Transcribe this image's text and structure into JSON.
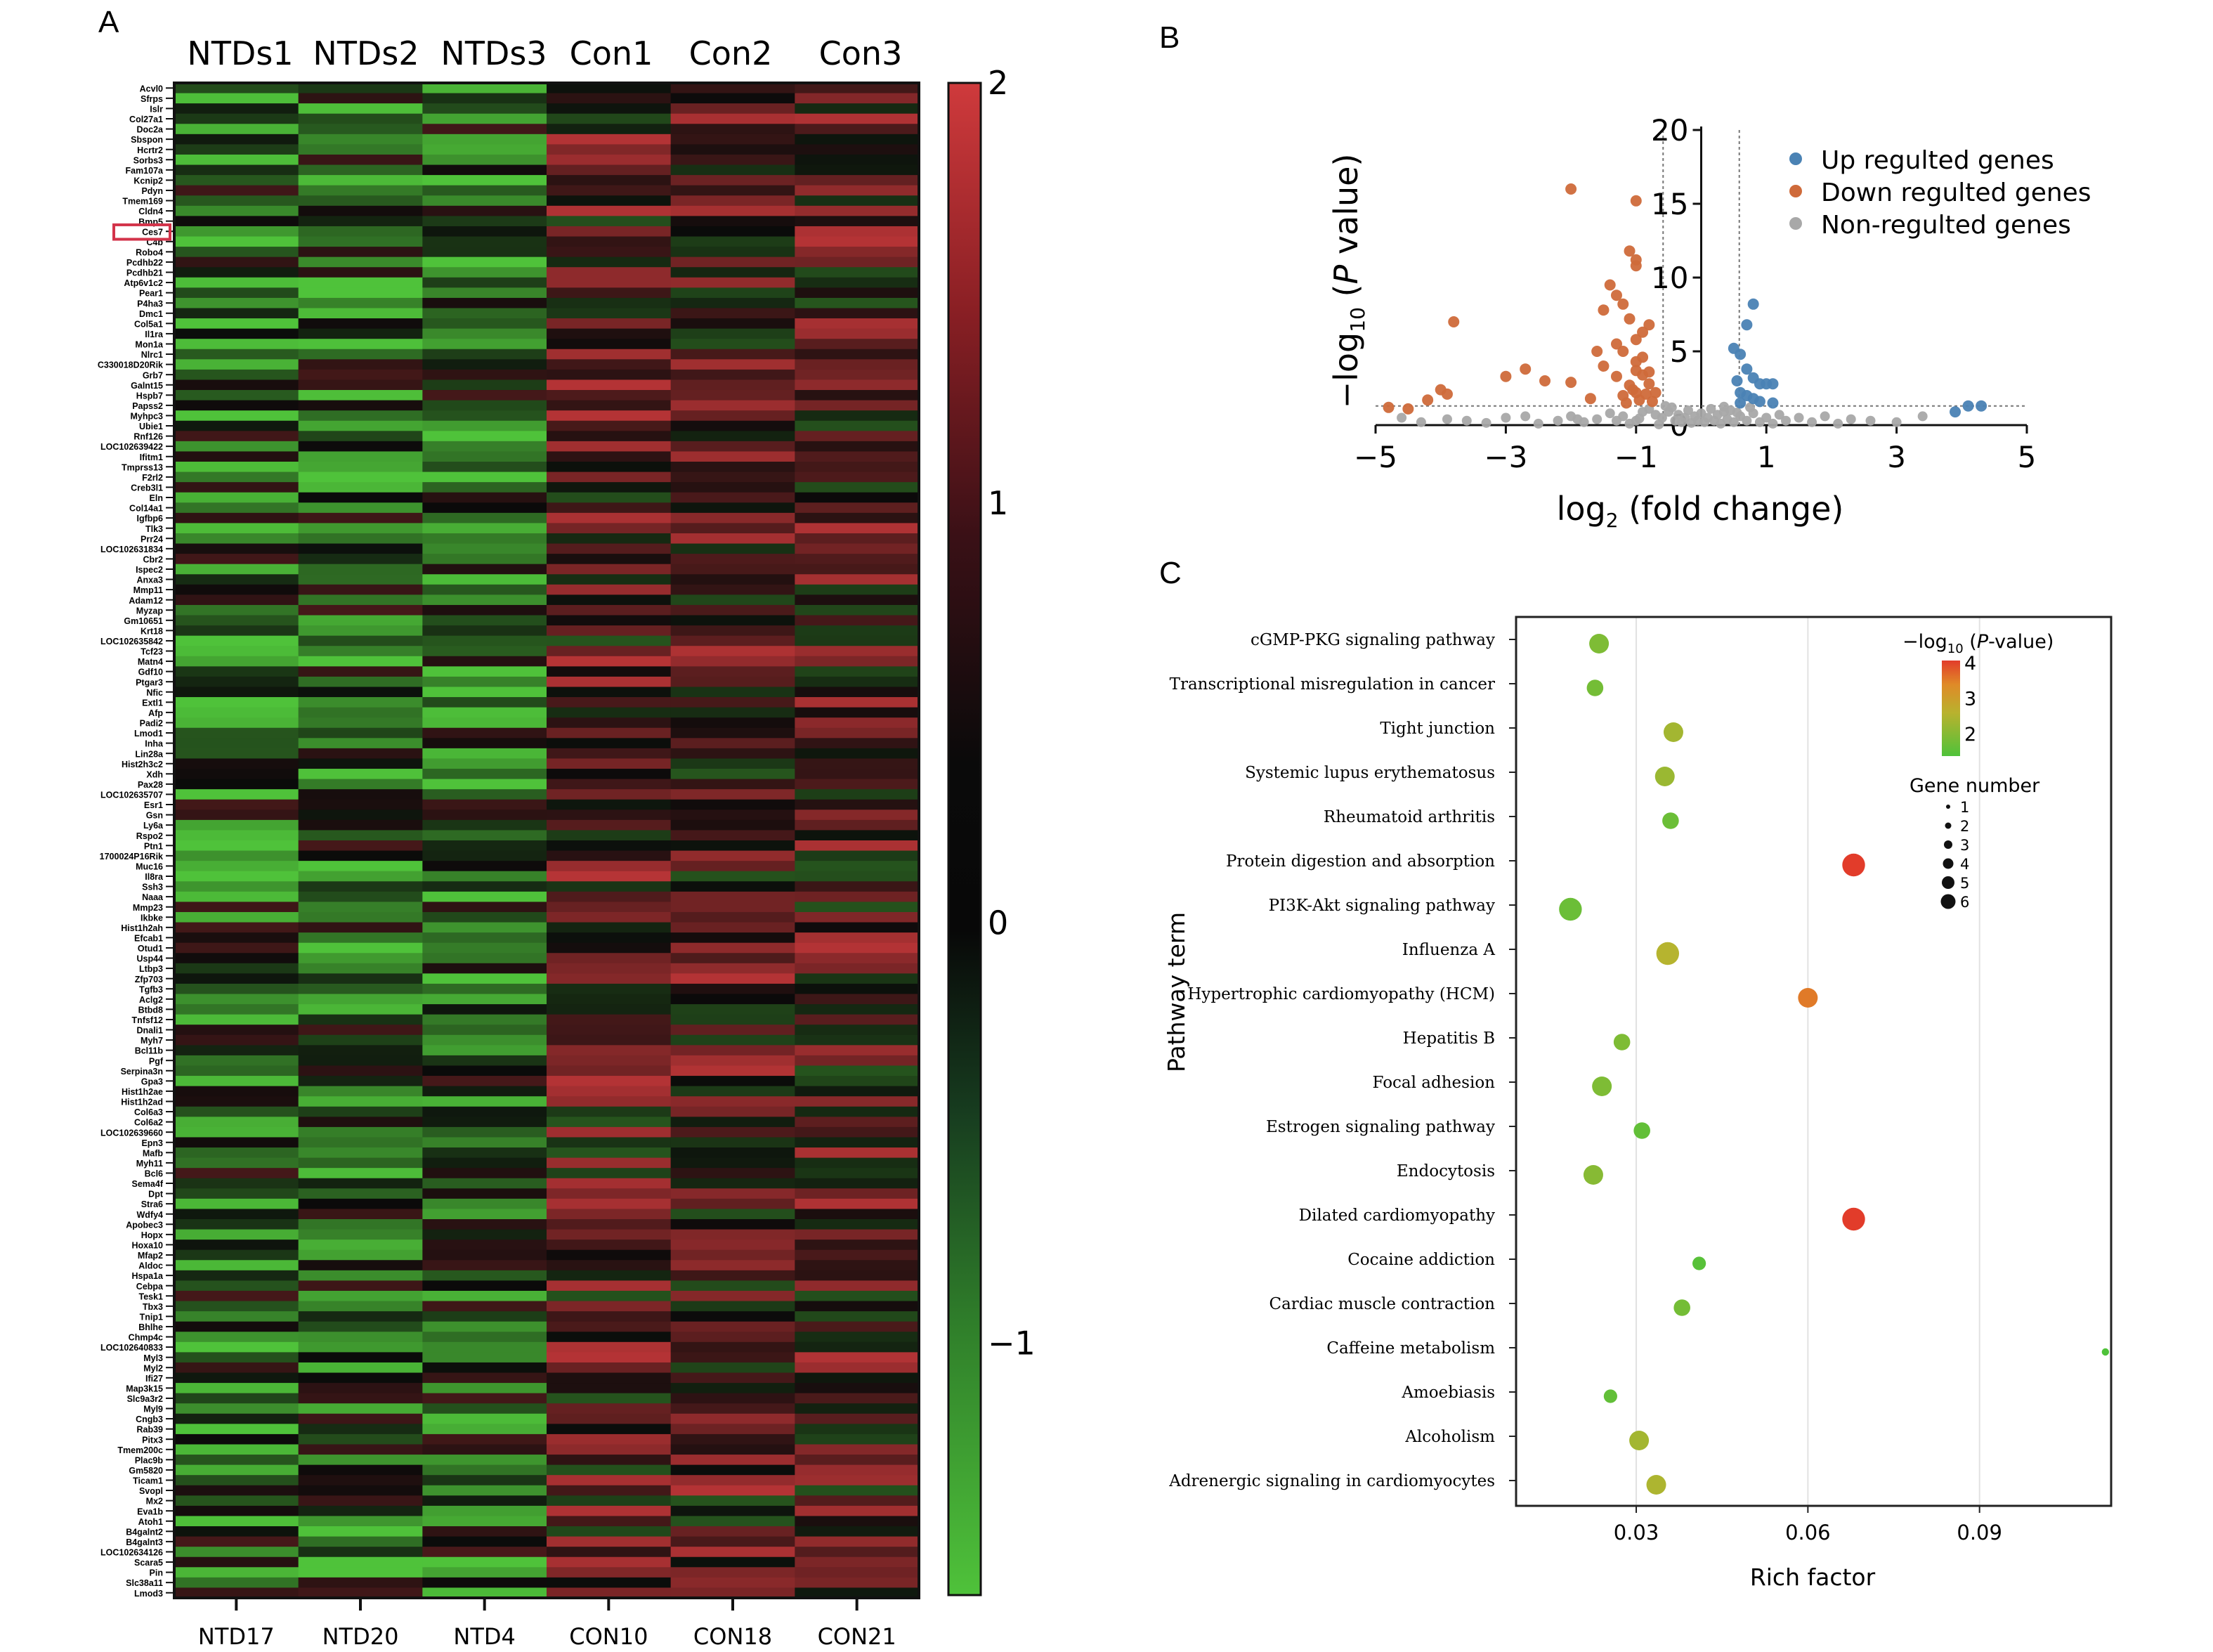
{
  "panels": {
    "a": "A",
    "b": "B",
    "c": "C"
  },
  "chart_data": [
    {
      "type": "heatmap",
      "group_labels": [
        "NTDs1",
        "NTDs2",
        "NTDs3",
        "Con1",
        "Con2",
        "Con3"
      ],
      "samples": [
        "NTD17",
        "NTD20",
        "NTD4",
        "CON10",
        "CON18",
        "CON21"
      ],
      "colorbar": {
        "ticks": [
          2,
          1,
          0,
          -1
        ],
        "labels": [
          "2",
          "1",
          "0",
          "−1"
        ],
        "range": [
          -1.6,
          2.0
        ],
        "colors": {
          "low": "#4fc23a",
          "mid": "#0a0a0a",
          "high": "#cf3a3c"
        }
      },
      "highlighted_gene": "Ces7",
      "genes": [
        "Acvl0",
        "Sfrps",
        "Islr",
        "Col27a1",
        "Doc2a",
        "Sbspon",
        "Hcrtr2",
        "Sorbs3",
        "Fam107a",
        "Kcnip2",
        "Pdyn",
        "Tmem169",
        "Cldn4",
        "Bmp5",
        "Ces7",
        "C4b",
        "Robo4",
        "Pcdhb22",
        "Pcdhb21",
        "Atp6v1c2",
        "Pear1",
        "P4ha3",
        "Dmc1",
        "Col5a1",
        "Il1ra",
        "Mon1a",
        "Nlrc1",
        "C330018D20Rik",
        "Grb7",
        "Galnt15",
        "Hspb7",
        "Papss2",
        "Myhpc3",
        "Ubie1",
        "Rnf126",
        "LOC102639422",
        "Ifitm1",
        "Tmprss13",
        "F2rl2",
        "Creb3l1",
        "Eln",
        "Col14a1",
        "Igfbp6",
        "Tlk3",
        "Prr24",
        "LOC102631834",
        "Cbr2",
        "Ispec2",
        "Anxa3",
        "Mmp11",
        "Adam12",
        "Myzap",
        "Gm10651",
        "Krt18",
        "LOC102635842",
        "Tcf23",
        "Matn4",
        "Gdf10",
        "Ptgar3",
        "Nfic",
        "Extl1",
        "Afp",
        "Padi2",
        "Lmod1",
        "Inha",
        "Lin28a",
        "Hist2h3c2",
        "Xdh",
        "Pax28",
        "LOC102635707",
        "Esr1",
        "Gsn",
        "Ly6a",
        "Rspo2",
        "Ptn1",
        "1700024P16Rik",
        "Muc16",
        "Il8ra",
        "Ssh3",
        "Naaa",
        "Mmp23",
        "Ikbke",
        "Hist1h2ah",
        "Efcab1",
        "Otud1",
        "Usp44",
        "Ltbp3",
        "Zfp703",
        "Tgfb3",
        "Aclg2",
        "Btbd8",
        "Tnfsf12",
        "Dnali1",
        "Myh7",
        "Bcl11b",
        "Pgf",
        "Serpina3n",
        "Gpa3",
        "Hist1h2ae",
        "Hist1h2ad",
        "Col6a3",
        "Col6a2",
        "LOC102639660",
        "Epn3",
        "Mafb",
        "Myh11",
        "Bcl6",
        "Sema4f",
        "Dpt",
        "Stra6",
        "Wdfy4",
        "Apobec3",
        "Hopx",
        "Hoxa10",
        "Mfap2",
        "Aldoc",
        "Hspa1a",
        "Cebpa",
        "Tesk1",
        "Tbx3",
        "Tnip1",
        "Bhlhe",
        "Chmp4c",
        "LOC102640833",
        "Myl3",
        "Myl2",
        "Ifi27",
        "Map3k15",
        "Slc9a3r2",
        "Myl9",
        "Cngb3",
        "Rab39",
        "Pitx3",
        "Tmem200c",
        "Plac9b",
        "Gm5820",
        "Ticam1",
        "Svopl",
        "Mx2",
        "Eva1b",
        "Atoh1",
        "B4galnt2",
        "B4galnt3",
        "LOC102634126",
        "Scara5",
        "Pin",
        "Slc38a11",
        "Lmod3"
      ]
    },
    {
      "type": "scatter",
      "subtype": "volcano",
      "xlabel": "log2 (fold change)",
      "ylabel": "−log10 (P value)",
      "xlim": [
        -5,
        5
      ],
      "ylim": [
        0,
        20
      ],
      "xticks": [
        -5,
        -3,
        -1,
        1,
        3,
        5
      ],
      "xtick_labels": [
        "−5",
        "−3",
        "−1",
        "1",
        "3",
        "5"
      ],
      "yticks": [
        0,
        5,
        10,
        15,
        20
      ],
      "thresholds": {
        "fold_change_x": [
          -0.585,
          0.585
        ],
        "p_y": 1.3
      },
      "legend": {
        "position": "top-right",
        "entries": [
          {
            "label": "Up regulted genes",
            "color": "#4a82b4"
          },
          {
            "label": "Down regulted genes",
            "color": "#cf6a3a"
          },
          {
            "label": "Non-regulted genes",
            "color": "#a8a8a8"
          }
        ]
      },
      "series": [
        {
          "name": "Up regulted genes",
          "points": [
            [
              0.8,
              8.2
            ],
            [
              0.7,
              6.8
            ],
            [
              0.5,
              5.2
            ],
            [
              0.6,
              4.8
            ],
            [
              0.7,
              3.8
            ],
            [
              0.8,
              3.2
            ],
            [
              0.9,
              2.8
            ],
            [
              1.0,
              2.8
            ],
            [
              1.1,
              2.8
            ],
            [
              0.6,
              2.2
            ],
            [
              0.8,
              1.8
            ],
            [
              0.9,
              1.6
            ],
            [
              4.1,
              1.3
            ],
            [
              4.3,
              1.3
            ],
            [
              3.9,
              0.9
            ],
            [
              1.1,
              1.5
            ],
            [
              0.6,
              1.5
            ],
            [
              0.7,
              2.0
            ],
            [
              0.55,
              3.0
            ]
          ]
        },
        {
          "name": "Down regulted genes",
          "points": [
            [
              -2.0,
              16
            ],
            [
              -1.0,
              15.2
            ],
            [
              -1.1,
              11.8
            ],
            [
              -1.0,
              11.2
            ],
            [
              -1.0,
              10.8
            ],
            [
              -1.4,
              9.5
            ],
            [
              -1.3,
              8.8
            ],
            [
              -1.2,
              8.2
            ],
            [
              -1.5,
              7.8
            ],
            [
              -1.1,
              7.2
            ],
            [
              -0.8,
              6.8
            ],
            [
              -0.9,
              6.3
            ],
            [
              -1.0,
              5.8
            ],
            [
              -1.3,
              5.5
            ],
            [
              -1.6,
              5.0
            ],
            [
              -1.2,
              5.0
            ],
            [
              -0.9,
              4.6
            ],
            [
              -1.0,
              4.3
            ],
            [
              -1.5,
              4.0
            ],
            [
              -3.8,
              7.0
            ],
            [
              -2.7,
              3.8
            ],
            [
              -3.0,
              3.3
            ],
            [
              -2.4,
              3.0
            ],
            [
              -2.0,
              2.9
            ],
            [
              -4.0,
              2.4
            ],
            [
              -3.9,
              2.1
            ],
            [
              -4.2,
              1.7
            ],
            [
              -4.5,
              1.1
            ],
            [
              -4.8,
              1.2
            ],
            [
              -1.7,
              1.8
            ],
            [
              -1.0,
              2.2
            ],
            [
              -1.1,
              2.7
            ],
            [
              -1.3,
              3.3
            ],
            [
              -0.9,
              3.4
            ],
            [
              -0.8,
              2.8
            ],
            [
              -0.7,
              2.2
            ],
            [
              -0.75,
              1.6
            ],
            [
              -1.15,
              1.5
            ],
            [
              -0.8,
              3.6
            ],
            [
              -1.0,
              3.7
            ],
            [
              -1.05,
              2.4
            ],
            [
              -1.2,
              2.0
            ],
            [
              -0.85,
              2.1
            ],
            [
              -0.95,
              1.7
            ]
          ]
        },
        {
          "name": "Non-regulted genes",
          "points": [
            [
              -4.6,
              0.5
            ],
            [
              -4.3,
              0.2
            ],
            [
              -3.9,
              0.4
            ],
            [
              -3.6,
              0.3
            ],
            [
              -3.3,
              0.15
            ],
            [
              -3.0,
              0.5
            ],
            [
              -2.7,
              0.6
            ],
            [
              -2.5,
              0.1
            ],
            [
              -2.2,
              0.3
            ],
            [
              -2.0,
              0.6
            ],
            [
              -1.8,
              0.2
            ],
            [
              -1.6,
              0.4
            ],
            [
              -1.4,
              0.8
            ],
            [
              -1.2,
              0.6
            ],
            [
              -1.0,
              0.3
            ],
            [
              -0.9,
              0.9
            ],
            [
              -0.8,
              1.1
            ],
            [
              -0.7,
              0.7
            ],
            [
              -0.6,
              0.5
            ],
            [
              -0.5,
              0.9
            ],
            [
              -0.45,
              1.2
            ],
            [
              -0.4,
              0.3
            ],
            [
              -0.35,
              0.7
            ],
            [
              -0.3,
              0.2
            ],
            [
              -0.25,
              0.5
            ],
            [
              -0.2,
              1.0
            ],
            [
              -0.15,
              0.15
            ],
            [
              -0.1,
              0.6
            ],
            [
              -0.05,
              0.3
            ],
            [
              0.0,
              0.8
            ],
            [
              0.05,
              0.2
            ],
            [
              0.1,
              0.5
            ],
            [
              0.15,
              1.1
            ],
            [
              0.2,
              0.3
            ],
            [
              0.25,
              0.7
            ],
            [
              0.3,
              0.1
            ],
            [
              0.35,
              0.9
            ],
            [
              0.4,
              0.4
            ],
            [
              0.45,
              1.0
            ],
            [
              0.5,
              0.2
            ],
            [
              0.6,
              0.6
            ],
            [
              0.7,
              0.3
            ],
            [
              0.8,
              0.8
            ],
            [
              0.9,
              0.2
            ],
            [
              1.0,
              0.5
            ],
            [
              1.1,
              0.1
            ],
            [
              1.2,
              0.7
            ],
            [
              1.3,
              0.3
            ],
            [
              1.5,
              0.5
            ],
            [
              1.7,
              0.2
            ],
            [
              1.9,
              0.6
            ],
            [
              2.1,
              0.1
            ],
            [
              2.3,
              0.4
            ],
            [
              2.6,
              0.3
            ],
            [
              3.0,
              0.2
            ],
            [
              3.4,
              0.6
            ],
            [
              -1.1,
              0.1
            ],
            [
              -0.95,
              0.45
            ],
            [
              -0.65,
              0.05
            ],
            [
              0.55,
              0.85
            ],
            [
              -1.3,
              0.3
            ],
            [
              -1.9,
              0.4
            ],
            [
              0.75,
              1.2
            ],
            [
              -0.55,
              1.3
            ],
            [
              0.35,
              1.25
            ]
          ]
        }
      ]
    },
    {
      "type": "scatter",
      "subtype": "bubble",
      "xlabel": "Rich factor",
      "ylabel": "Pathway term",
      "xlim": [
        0.009,
        0.113
      ],
      "xticks": [
        0.03,
        0.06,
        0.09
      ],
      "xtick_labels": [
        "0.03",
        "0.06",
        "0.09"
      ],
      "grid": true,
      "color_legend": {
        "title": "−log10 (P-value)",
        "ticks": [
          4,
          3,
          2
        ],
        "range": [
          1.5,
          4.0
        ],
        "low": "#4fc23a",
        "high": "#e23c2a"
      },
      "size_legend": {
        "title": "Gene number",
        "values": [
          1,
          2,
          3,
          4,
          5,
          6
        ]
      },
      "terms": [
        "cGMP-PKG signaling pathway",
        "Transcriptional misregulation in cancer",
        "Tight junction",
        "Systemic lupus erythematosus",
        "Rheumatoid arthritis",
        "Protein digestion and absorption",
        "PI3K-Akt signaling pathway",
        "Influenza A",
        "Hypertrophic cardiomyopathy (HCM)",
        "Hepatitis B",
        "Focal adhesion",
        "Estrogen signaling pathway",
        "Endocytosis",
        "Dilated cardiomyopathy",
        "Cocaine addiction",
        "Cardiac muscle contraction",
        "Caffeine metabolism",
        "Amoebiasis",
        "Alcoholism",
        "Adrenergic signaling in cardiomyocytes"
      ],
      "rich_factor": [
        0.0235,
        0.0228,
        0.0365,
        0.035,
        0.036,
        0.068,
        0.0185,
        0.0355,
        0.06,
        0.0275,
        0.024,
        0.031,
        0.0225,
        0.068,
        0.041,
        0.038,
        0.112,
        0.0255,
        0.0305,
        0.0335
      ],
      "neg_log10_p": [
        2.0,
        1.9,
        2.4,
        2.3,
        1.8,
        4.0,
        1.8,
        2.6,
        3.5,
        2.0,
        2.0,
        1.7,
        2.1,
        4.0,
        1.6,
        1.9,
        1.5,
        1.7,
        2.4,
        2.5
      ],
      "gene_number": [
        5,
        4,
        5,
        5,
        4,
        6,
        6,
        6,
        5,
        4,
        5,
        4,
        5,
        6,
        3,
        4,
        1,
        3,
        5,
        5
      ]
    }
  ]
}
